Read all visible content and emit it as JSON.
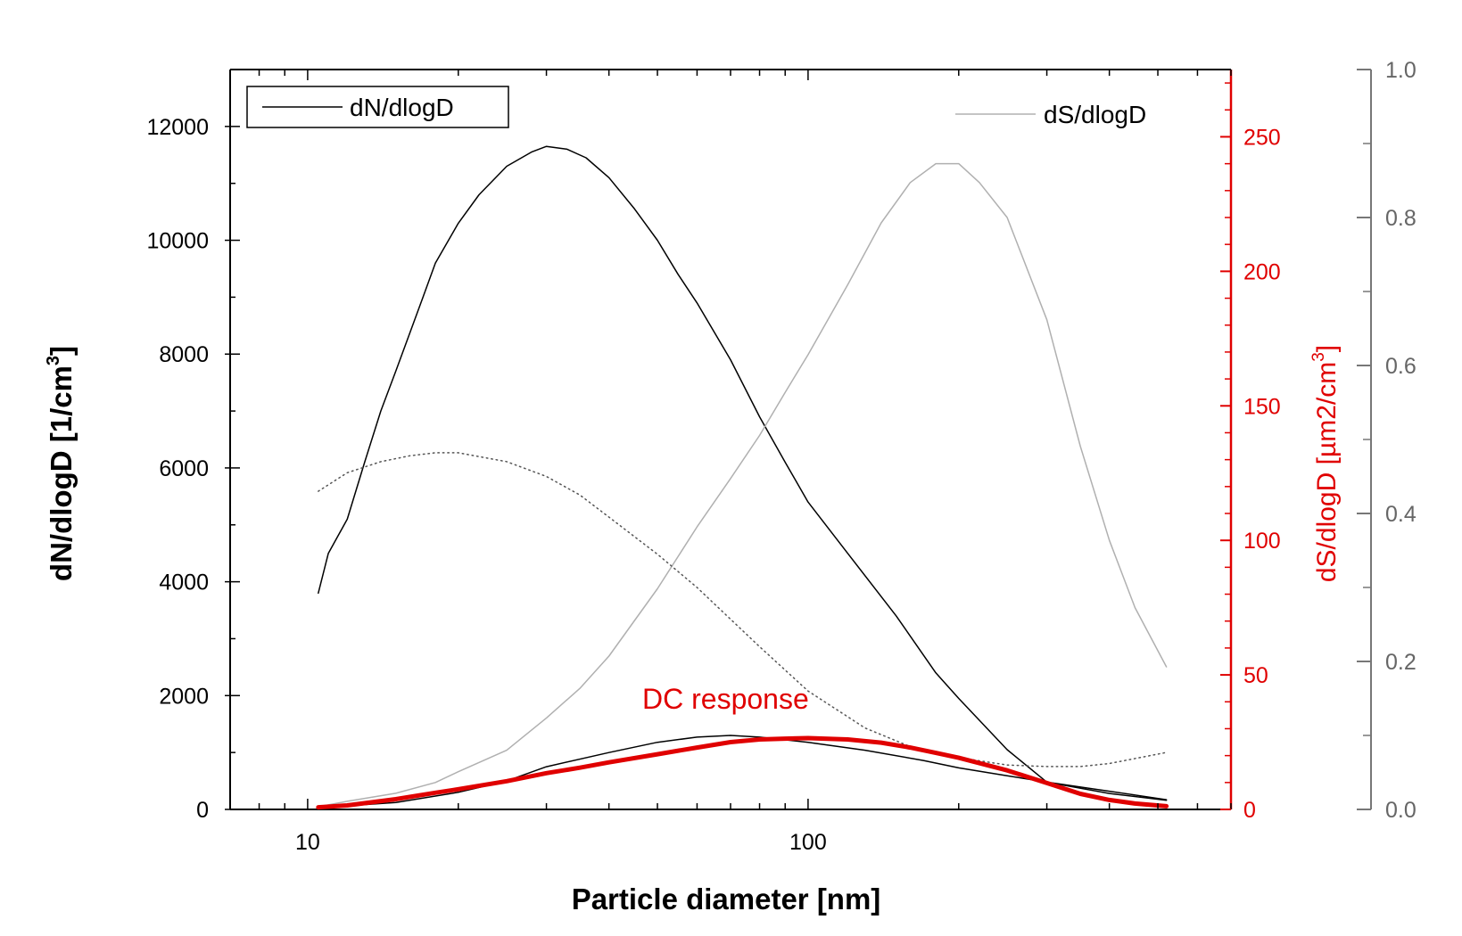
{
  "chart_data": {
    "type": "line",
    "xlabel": "Particle diameter [nm]",
    "x_scale": "log",
    "xlim": [
      7,
      700
    ],
    "x_ticks": [
      10,
      100
    ],
    "x_ticklabels": [
      "10",
      "100"
    ],
    "axes": {
      "left": {
        "label_main": "dN/dlogD [1/cm",
        "label_sup": "3",
        "label_end": "]",
        "ylim": [
          0,
          13000
        ],
        "ticks": [
          0,
          2000,
          4000,
          6000,
          8000,
          10000,
          12000
        ],
        "ticklabels": [
          "0",
          "2000",
          "4000",
          "6000",
          "8000",
          "10000",
          "12000"
        ],
        "color": "#000000"
      },
      "right": {
        "label_main": "dS/dlogD [µm2/cm",
        "label_sup": "3",
        "label_end": "]",
        "ylim": [
          0,
          275
        ],
        "ticks": [
          0,
          50,
          100,
          150,
          200,
          250
        ],
        "ticklabels": [
          "0",
          "50",
          "100",
          "150",
          "200",
          "250"
        ],
        "color": "#e00000"
      },
      "far_right": {
        "ylim": [
          0,
          1.0
        ],
        "ticks": [
          0,
          0.2,
          0.4,
          0.6,
          0.8,
          1.0
        ],
        "ticklabels": [
          "0.0",
          "0.2",
          "0.4",
          "0.6",
          "0.8",
          "1.0"
        ],
        "color": "#666666"
      }
    },
    "legend": [
      {
        "label": "dN/dlogD",
        "position": "top-left",
        "boxed": true
      },
      {
        "label": "dS/dlogD",
        "position": "top-right",
        "boxed": false
      }
    ],
    "annotations": [
      {
        "text": "DC response",
        "x": 90,
        "y_left": 1850,
        "color": "#e00000"
      }
    ],
    "series": [
      {
        "name": "dN/dlogD",
        "axis": "left",
        "color": "#000000",
        "style": "solid",
        "x": [
          10.5,
          11,
          12,
          13,
          14,
          15,
          17,
          18,
          20,
          22,
          25,
          28,
          30,
          33,
          36,
          40,
          45,
          50,
          55,
          60,
          70,
          80,
          90,
          100,
          120,
          150,
          180,
          200,
          250,
          300,
          400,
          520
        ],
        "y": [
          3800,
          4500,
          5100,
          6100,
          7000,
          7700,
          9000,
          9600,
          10300,
          10800,
          11300,
          11550,
          11650,
          11600,
          11450,
          11100,
          10550,
          10000,
          9400,
          8900,
          7900,
          6900,
          6100,
          5400,
          4500,
          3400,
          2400,
          1950,
          1050,
          480,
          280,
          160
        ]
      },
      {
        "name": "dS/dlogD",
        "axis": "right",
        "color": "#b0b0b0",
        "style": "solid",
        "x": [
          10.5,
          12,
          15,
          18,
          20,
          25,
          30,
          35,
          40,
          50,
          60,
          70,
          80,
          90,
          100,
          120,
          140,
          160,
          180,
          200,
          220,
          250,
          300,
          350,
          400,
          450,
          520
        ],
        "y": [
          1,
          3,
          6,
          10,
          14,
          22,
          34,
          45,
          57,
          82,
          105,
          123,
          139,
          155,
          169,
          195,
          218,
          233,
          240,
          240,
          233,
          220,
          182,
          135,
          100,
          75,
          53
        ]
      },
      {
        "name": "dotted",
        "axis": "far_right",
        "color": "#555555",
        "style": "dotted",
        "x": [
          10.5,
          12,
          14,
          16,
          18,
          20,
          25,
          30,
          35,
          40,
          50,
          60,
          80,
          100,
          130,
          160,
          200,
          250,
          300,
          350,
          400,
          520
        ],
        "y": [
          0.43,
          0.455,
          0.47,
          0.478,
          0.482,
          0.482,
          0.47,
          0.45,
          0.425,
          0.395,
          0.345,
          0.3,
          0.22,
          0.16,
          0.11,
          0.085,
          0.07,
          0.06,
          0.058,
          0.058,
          0.062,
          0.077
        ]
      },
      {
        "name": "dN/dlogD (lower)",
        "axis": "left",
        "color": "#000000",
        "style": "solid",
        "x": [
          10.5,
          15,
          20,
          25,
          30,
          40,
          50,
          60,
          70,
          80,
          100,
          130,
          170,
          200,
          250,
          300,
          400,
          520
        ],
        "y": [
          30,
          120,
          300,
          500,
          750,
          1000,
          1180,
          1270,
          1300,
          1270,
          1180,
          1040,
          860,
          730,
          590,
          480,
          320,
          170
        ]
      },
      {
        "name": "DC response",
        "axis": "right",
        "color": "#e00000",
        "style": "thick",
        "x": [
          10.5,
          12,
          15,
          18,
          20,
          25,
          30,
          35,
          40,
          50,
          60,
          70,
          80,
          90,
          100,
          120,
          140,
          160,
          180,
          200,
          250,
          300,
          350,
          400,
          450,
          520
        ],
        "y": [
          0.8,
          1.5,
          3.8,
          6.2,
          7.5,
          10.5,
          13.5,
          15.5,
          17.5,
          20.5,
          23.0,
          25.0,
          26.0,
          26.3,
          26.5,
          26.0,
          24.8,
          23.0,
          21.0,
          19.2,
          14.5,
          9.8,
          5.8,
          3.5,
          2.2,
          1.2
        ]
      }
    ]
  }
}
